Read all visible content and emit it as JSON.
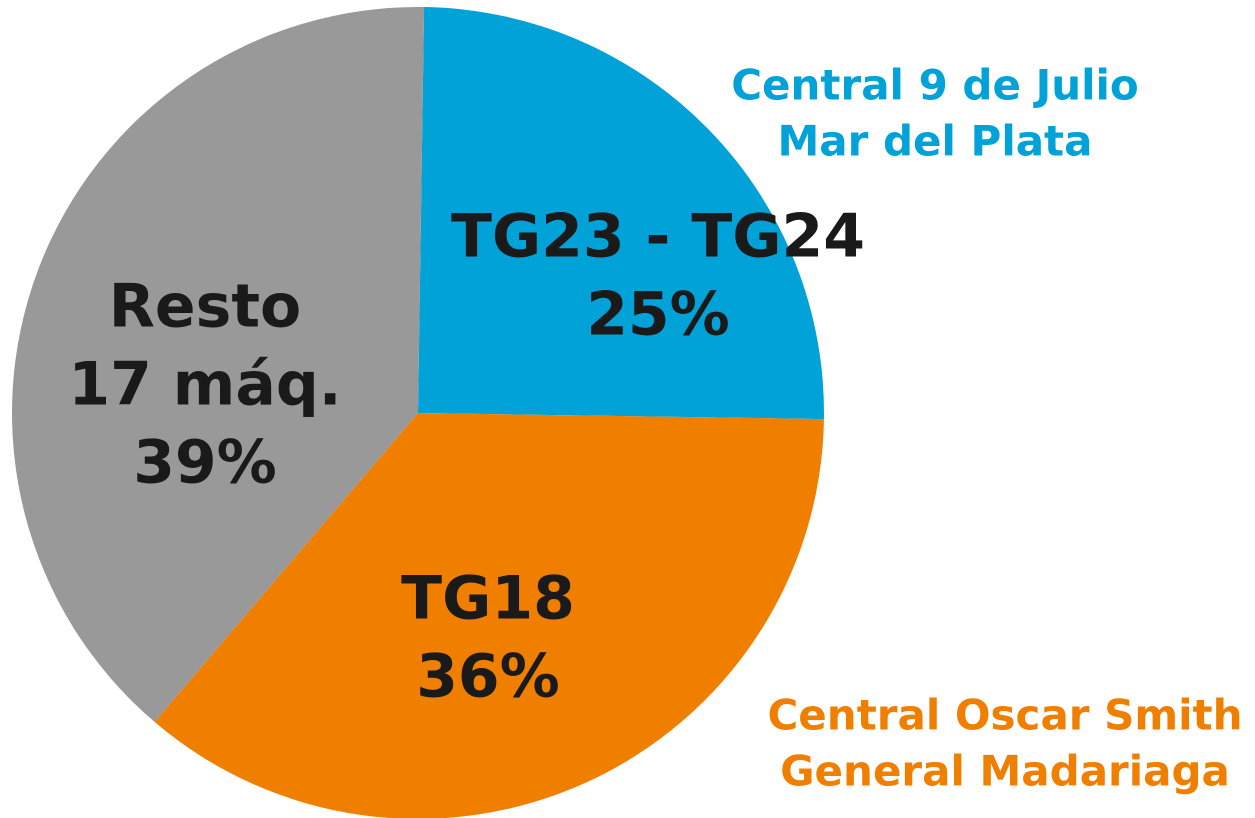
{
  "chart_data": {
    "type": "pie",
    "categories": [
      [
        "TG23 - TG24"
      ],
      [
        "TG18"
      ],
      [
        "Resto",
        "17 máq."
      ]
    ],
    "values": [
      25,
      36,
      39
    ],
    "value_labels": [
      "25%",
      "36%",
      "39%"
    ],
    "colors": [
      "#00a2d8",
      "#f07f00",
      "#999999"
    ],
    "annotations": [
      {
        "lines": [
          "Central 9 de Julio",
          "Mar del Plata"
        ],
        "color": "#00a2d8"
      },
      {
        "lines": [
          "Central Oscar Smith",
          "General Madariaga"
        ],
        "color": "#f07f00"
      }
    ]
  }
}
